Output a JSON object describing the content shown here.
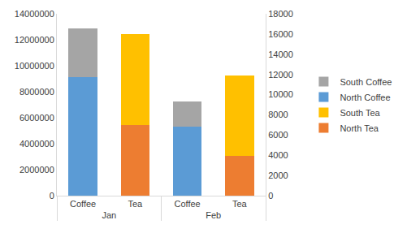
{
  "chart_data": {
    "type": "bar",
    "stacked": true,
    "grid": false,
    "legend": "right",
    "categories": [
      "Coffee",
      "Tea",
      "Coffee",
      "Tea"
    ],
    "category_groups": [
      "Jan",
      "Jan",
      "Feb",
      "Feb"
    ],
    "ylim": [
      0,
      14000000
    ],
    "yticks": [
      0,
      2000000,
      4000000,
      6000000,
      8000000,
      10000000,
      12000000,
      14000000
    ],
    "y2lim": [
      0,
      18000
    ],
    "y2ticks": [
      0,
      2000,
      4000,
      6000,
      8000,
      10000,
      12000,
      14000,
      16000,
      18000
    ],
    "series": [
      {
        "name": "South Coffee",
        "color": "#a5a5a5",
        "values": [
          3800000,
          null,
          1950000,
          null
        ]
      },
      {
        "name": "North Coffee",
        "color": "#5b9bd5",
        "values": [
          9100000,
          null,
          5300000,
          null
        ]
      },
      {
        "name": "South Tea",
        "color": "#ffc000",
        "values": [
          null,
          9000,
          null,
          8000
        ],
        "axis": "y2"
      },
      {
        "name": "North Tea",
        "color": "#ed7d31",
        "values": [
          null,
          7000,
          null,
          3900
        ],
        "axis": "y2"
      }
    ]
  }
}
